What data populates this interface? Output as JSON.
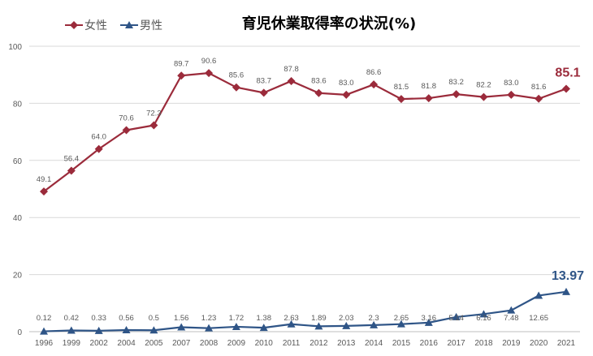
{
  "chart_data": {
    "type": "line",
    "title": "育児休業取得率の状況(%)",
    "categories": [
      "1996",
      "1999",
      "2002",
      "2004",
      "2005",
      "2007",
      "2008",
      "2009",
      "2010",
      "2011",
      "2012",
      "2013",
      "2014",
      "2015",
      "2016",
      "2017",
      "2018",
      "2019",
      "2020",
      "2021"
    ],
    "series": [
      {
        "name": "女性",
        "color": "#9b2b3b",
        "marker": "diamond",
        "values": [
          49.1,
          56.4,
          64.0,
          70.6,
          72.3,
          89.7,
          90.6,
          85.6,
          83.7,
          87.8,
          83.6,
          83.0,
          86.6,
          81.5,
          81.8,
          83.2,
          82.2,
          83.0,
          81.6,
          85.1
        ],
        "labels": [
          "49.1",
          "56.4",
          "64.0",
          "70.6",
          "72.3",
          "89.7",
          "90.6",
          "85.6",
          "83.7",
          "87.8",
          "83.6",
          "83.0",
          "86.6",
          "81.5",
          "81.8",
          "83.2",
          "82.2",
          "83.0",
          "81.6",
          "85.1"
        ]
      },
      {
        "name": "男性",
        "color": "#2f5587",
        "marker": "triangle",
        "values": [
          0.12,
          0.42,
          0.33,
          0.56,
          0.5,
          1.56,
          1.23,
          1.72,
          1.38,
          2.63,
          1.89,
          2.03,
          2.3,
          2.65,
          3.16,
          5.14,
          6.16,
          7.48,
          12.65,
          13.97
        ],
        "labels": [
          "0.12",
          "0.42",
          "0.33",
          "0.56",
          "0.5",
          "1.56",
          "1.23",
          "1.72",
          "1.38",
          "2.63",
          "1.89",
          "2.03",
          "2.3",
          "2.65",
          "3.16",
          "5.14",
          "6.16",
          "7.48",
          "12.65",
          "13.97"
        ]
      }
    ],
    "ylim": [
      0,
      100
    ],
    "yticks": [
      "0",
      "20",
      "40",
      "60",
      "80",
      "100"
    ],
    "grid": true,
    "legend": "top-left",
    "xlabel": "",
    "ylabel": ""
  }
}
